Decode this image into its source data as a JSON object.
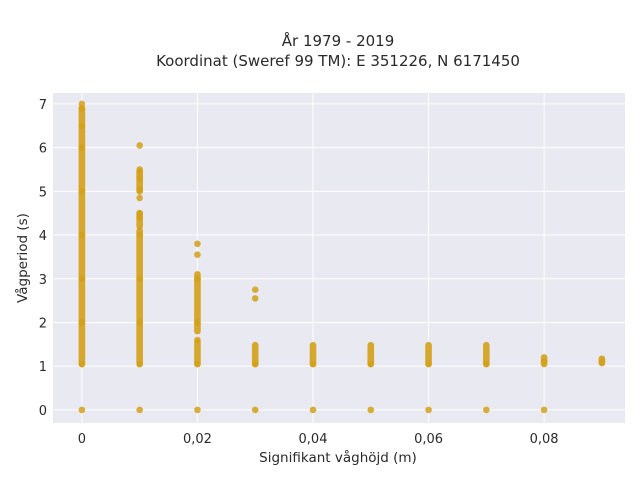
{
  "chart_data": {
    "type": "scatter",
    "title_line1": "År 1979 - 2019",
    "title_line2": "Koordinat (Sweref 99 TM): E 351226, N 6171450",
    "xlabel": "Signifikant våghöjd (m)",
    "ylabel": "Vågperiod (s)",
    "xlim": [
      -0.005,
      0.094
    ],
    "ylim": [
      -0.3,
      7.25
    ],
    "x_ticks": [
      0,
      0.02,
      0.04,
      0.06,
      0.08
    ],
    "x_tick_labels": [
      "0",
      "0,02",
      "0,04",
      "0,06",
      "0,08"
    ],
    "y_ticks": [
      0,
      1,
      2,
      3,
      4,
      5,
      6,
      7
    ],
    "y_tick_labels": [
      "0",
      "1",
      "2",
      "3",
      "4",
      "5",
      "6",
      "7"
    ],
    "grid": true,
    "colors": {
      "marker": "#d4a017",
      "plot_background": "#e9e9f1",
      "grid": "#ffffff"
    },
    "series": [
      {
        "x": [
          0,
          0,
          0,
          0,
          0,
          0,
          0,
          0,
          0,
          0,
          0.01,
          0.01,
          0.01,
          0.01,
          0.01,
          0.01,
          0.01,
          0.01,
          0.01,
          0.01,
          0.01,
          0.01,
          0.01,
          0.02,
          0.02,
          0.02,
          0.02,
          0.02,
          0.02,
          0.02,
          0.03,
          0.03,
          0.03,
          0.03,
          0.04,
          0.04,
          0.05,
          0.05,
          0.06,
          0.06,
          0.07,
          0.07,
          0.08,
          0.08,
          0.09
        ],
        "y": [
          0,
          1.05,
          2.0,
          3.0,
          4.0,
          5.0,
          6.0,
          6.5,
          6.9,
          7.0,
          0,
          1.05,
          2.0,
          3.0,
          4.0,
          4.4,
          4.5,
          4.85,
          5.05,
          5.3,
          5.45,
          5.5,
          6.05,
          0,
          1.05,
          1.6,
          2.0,
          3.0,
          3.55,
          3.8,
          0,
          1.05,
          2.55,
          2.75,
          0,
          1.05,
          0,
          1.05,
          0,
          1.05,
          0,
          1.05,
          0,
          1.1,
          1.1
        ],
        "ranges": [
          {
            "x": 0,
            "y": [
              1.05,
              6.9
            ]
          },
          {
            "x": 0.01,
            "y": [
              1.05,
              4.1
            ]
          },
          {
            "x": 0.01,
            "y": [
              4.2,
              4.5
            ]
          },
          {
            "x": 0.01,
            "y": [
              5.0,
              5.45
            ]
          },
          {
            "x": 0.02,
            "y": [
              1.05,
              1.55
            ]
          },
          {
            "x": 0.02,
            "y": [
              1.8,
              3.1
            ]
          },
          {
            "x": 0.03,
            "y": [
              1.05,
              1.48
            ]
          },
          {
            "x": 0.04,
            "y": [
              1.05,
              1.48
            ]
          },
          {
            "x": 0.05,
            "y": [
              1.05,
              1.48
            ]
          },
          {
            "x": 0.06,
            "y": [
              1.05,
              1.48
            ]
          },
          {
            "x": 0.07,
            "y": [
              1.05,
              1.48
            ]
          },
          {
            "x": 0.08,
            "y": [
              1.05,
              1.2
            ]
          },
          {
            "x": 0.09,
            "y": [
              1.07,
              1.17
            ]
          }
        ]
      }
    ]
  }
}
